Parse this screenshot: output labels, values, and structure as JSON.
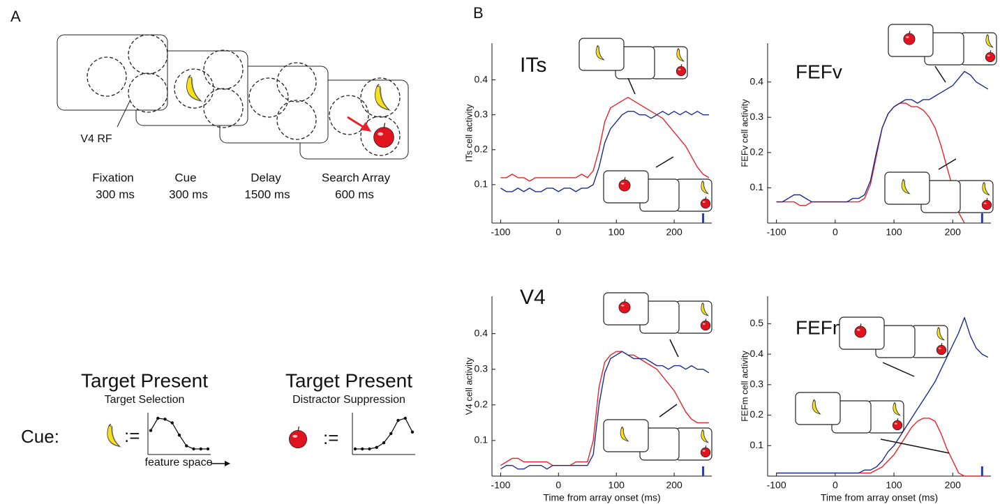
{
  "panel_a": {
    "label": "A",
    "rf_label": "V4 RF",
    "epochs": [
      {
        "name": "Fixation",
        "duration": "300 ms"
      },
      {
        "name": "Cue",
        "duration": "300 ms"
      },
      {
        "name": "Delay",
        "duration": "1500 ms"
      },
      {
        "name": "Search Array",
        "duration": "600 ms"
      }
    ],
    "cue_label": "Cue:",
    "feature_axis": "feature space",
    "conditions": [
      {
        "title": "Target Present",
        "subtitle": "Target Selection",
        "assign": ":=",
        "tuning": [
          0.6,
          1,
          0.97,
          0.85,
          0.45,
          0.1,
          0,
          0,
          0
        ]
      },
      {
        "title": "Target Present",
        "subtitle": "Distractor Suppression",
        "assign": ":=",
        "tuning": [
          0,
          0,
          0,
          0.05,
          0.2,
          0.5,
          0.93,
          1,
          0.55
        ]
      }
    ]
  },
  "panel_b_label": "B",
  "chart_data": [
    {
      "type": "line",
      "title": "ITs",
      "ylabel": "ITs cell activity",
      "x": [
        -100,
        -90,
        -80,
        -70,
        -60,
        -50,
        -40,
        -30,
        -20,
        -10,
        0,
        10,
        20,
        30,
        40,
        50,
        60,
        70,
        80,
        90,
        100,
        110,
        120,
        130,
        140,
        150,
        160,
        170,
        180,
        190,
        200,
        210,
        220,
        230,
        240,
        250,
        260
      ],
      "series": [
        {
          "color": "#e8222a",
          "values": [
            0.12,
            0.12,
            0.13,
            0.12,
            0.12,
            0.11,
            0.12,
            0.12,
            0.12,
            0.12,
            0.12,
            0.12,
            0.12,
            0.12,
            0.13,
            0.12,
            0.14,
            0.2,
            0.28,
            0.32,
            0.33,
            0.34,
            0.35,
            0.34,
            0.33,
            0.32,
            0.31,
            0.3,
            0.29,
            0.27,
            0.25,
            0.23,
            0.21,
            0.18,
            0.15,
            0.13,
            0.12
          ]
        },
        {
          "color": "#1f2a8c",
          "values": [
            0.09,
            0.08,
            0.08,
            0.09,
            0.08,
            0.09,
            0.08,
            0.08,
            0.09,
            0.09,
            0.08,
            0.09,
            0.09,
            0.08,
            0.09,
            0.09,
            0.1,
            0.15,
            0.22,
            0.26,
            0.28,
            0.3,
            0.31,
            0.31,
            0.3,
            0.3,
            0.29,
            0.3,
            0.31,
            0.3,
            0.31,
            0.3,
            0.31,
            0.3,
            0.31,
            0.3,
            0.3
          ]
        }
      ],
      "xlim": [
        -115,
        265
      ],
      "ylim": [
        -0.01,
        0.505
      ],
      "xticks": [
        -100,
        0,
        100,
        200
      ],
      "yticks": [
        0.1,
        0.2,
        0.3,
        0.4
      ],
      "event_x": 250,
      "event_color": "#2b3bb0"
    },
    {
      "type": "line",
      "title": "FEFv",
      "ylabel": "FEFv cell activity",
      "x": [
        -100,
        -90,
        -80,
        -70,
        -60,
        -50,
        -40,
        -30,
        -20,
        -10,
        0,
        10,
        20,
        30,
        40,
        50,
        60,
        70,
        80,
        90,
        100,
        110,
        120,
        130,
        140,
        150,
        160,
        170,
        180,
        190,
        200,
        210,
        220,
        230,
        240,
        250,
        260
      ],
      "series": [
        {
          "color": "#e8222a",
          "values": [
            0.06,
            0.06,
            0.06,
            0.06,
            0.05,
            0.05,
            0.06,
            0.06,
            0.06,
            0.06,
            0.06,
            0.06,
            0.06,
            0.06,
            0.06,
            0.07,
            0.11,
            0.19,
            0.27,
            0.31,
            0.33,
            0.34,
            0.34,
            0.33,
            0.33,
            0.32,
            0.3,
            0.27,
            0.22,
            0.16,
            0.1,
            0.03,
            0.0,
            null,
            null,
            null,
            null
          ]
        },
        {
          "color": "#1f2a8c",
          "values": [
            0.06,
            0.06,
            0.07,
            0.08,
            0.08,
            0.07,
            0.06,
            0.06,
            0.06,
            0.06,
            0.06,
            0.06,
            0.06,
            0.07,
            0.07,
            0.08,
            0.12,
            0.2,
            0.27,
            0.31,
            0.33,
            0.34,
            0.35,
            0.35,
            0.34,
            0.35,
            0.35,
            0.36,
            0.37,
            0.38,
            0.39,
            0.41,
            0.43,
            0.42,
            0.4,
            0.39,
            0.38
          ]
        }
      ],
      "xlim": [
        -115,
        265
      ],
      "ylim": [
        0,
        0.51
      ],
      "xticks": [
        -100,
        0,
        100,
        200
      ],
      "yticks": [
        0.1,
        0.2,
        0.3,
        0.4
      ],
      "event_x": 250,
      "event_color": "#2b3bb0"
    },
    {
      "type": "line",
      "title": "V4",
      "ylabel": "V4 cell activity",
      "xlabel": "Time from array onset (ms)",
      "x": [
        -100,
        -90,
        -80,
        -70,
        -60,
        -50,
        -40,
        -30,
        -20,
        -10,
        0,
        10,
        20,
        30,
        40,
        50,
        60,
        70,
        80,
        90,
        100,
        110,
        120,
        130,
        140,
        150,
        160,
        170,
        180,
        190,
        200,
        210,
        220,
        230,
        240,
        250,
        260
      ],
      "series": [
        {
          "color": "#e8222a",
          "values": [
            0.03,
            0.04,
            0.05,
            0.05,
            0.04,
            0.04,
            0.04,
            0.04,
            0.04,
            0.03,
            0.03,
            0.03,
            0.03,
            0.04,
            0.04,
            0.04,
            0.1,
            0.25,
            0.32,
            0.34,
            0.35,
            0.35,
            0.34,
            0.34,
            0.33,
            0.32,
            0.31,
            0.3,
            0.28,
            0.26,
            0.24,
            0.21,
            0.18,
            0.16,
            0.15,
            0.15,
            0.15
          ]
        },
        {
          "color": "#1f2a8c",
          "values": [
            0.02,
            0.03,
            0.03,
            0.02,
            0.02,
            0.03,
            0.03,
            0.03,
            0.02,
            0.03,
            0.03,
            0.03,
            0.03,
            0.03,
            0.03,
            0.03,
            0.06,
            0.2,
            0.29,
            0.33,
            0.34,
            0.35,
            0.34,
            0.33,
            0.33,
            0.33,
            0.32,
            0.31,
            0.31,
            0.3,
            0.31,
            0.31,
            0.3,
            0.31,
            0.3,
            0.3,
            0.29
          ]
        }
      ],
      "xlim": [
        -115,
        265
      ],
      "ylim": [
        0,
        0.505
      ],
      "xticks": [
        -100,
        0,
        100,
        200
      ],
      "yticks": [
        0.1,
        0.2,
        0.3,
        0.4
      ],
      "event_x": 250,
      "event_color": "#2b3bb0"
    },
    {
      "type": "line",
      "title": "FEFm",
      "ylabel": "FEFm cell activity",
      "xlabel": "Time from array onset (ms)",
      "x": [
        -100,
        -90,
        -80,
        -70,
        -60,
        -50,
        -40,
        -30,
        -20,
        -10,
        0,
        10,
        20,
        30,
        40,
        50,
        60,
        70,
        80,
        90,
        100,
        110,
        120,
        130,
        140,
        150,
        160,
        170,
        180,
        190,
        200,
        210,
        220,
        230,
        240,
        250,
        260
      ],
      "series": [
        {
          "color": "#e8222a",
          "values": [
            0.01,
            0.01,
            0.01,
            0.01,
            0.01,
            0.01,
            0.01,
            0.01,
            0.01,
            0.01,
            0.01,
            0.01,
            0.01,
            0.01,
            0.01,
            0.01,
            0.01,
            0.02,
            0.03,
            0.05,
            0.07,
            0.1,
            0.13,
            0.16,
            0.18,
            0.19,
            0.19,
            0.18,
            0.14,
            0.09,
            0.05,
            0.01,
            0.0,
            0.0,
            0.0,
            0.0,
            0.0
          ]
        },
        {
          "color": "#1f2a8c",
          "values": [
            0.01,
            0.01,
            0.01,
            0.01,
            0.01,
            0.01,
            0.01,
            0.01,
            0.01,
            0.01,
            0.01,
            0.01,
            0.01,
            0.01,
            0.01,
            0.02,
            0.02,
            0.03,
            0.05,
            0.08,
            0.1,
            0.13,
            0.16,
            0.19,
            0.22,
            0.25,
            0.28,
            0.31,
            0.35,
            0.39,
            0.43,
            0.47,
            0.52,
            0.46,
            0.42,
            0.4,
            0.39
          ]
        }
      ],
      "xlim": [
        -115,
        265
      ],
      "ylim": [
        0,
        0.59
      ],
      "xticks": [
        -100,
        0,
        100,
        200
      ],
      "yticks": [
        0.1,
        0.2,
        0.3,
        0.4,
        0.5
      ],
      "event_x": 250,
      "event_color": "#2b3bb0"
    }
  ]
}
